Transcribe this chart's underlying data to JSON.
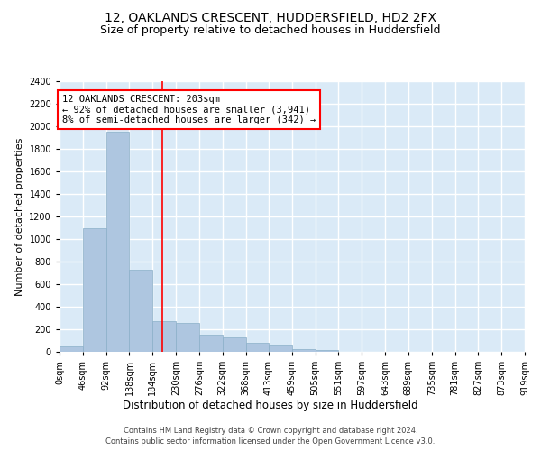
{
  "title1": "12, OAKLANDS CRESCENT, HUDDERSFIELD, HD2 2FX",
  "title2": "Size of property relative to detached houses in Huddersfield",
  "xlabel": "Distribution of detached houses by size in Huddersfield",
  "ylabel": "Number of detached properties",
  "footer1": "Contains HM Land Registry data © Crown copyright and database right 2024.",
  "footer2": "Contains public sector information licensed under the Open Government Licence v3.0.",
  "bar_color": "#aec6e0",
  "bar_edge_color": "#8aafc8",
  "background_color": "#daeaf7",
  "grid_color": "#ffffff",
  "property_line_x": 203,
  "property_line_color": "red",
  "annotation_text": "12 OAKLANDS CRESCENT: 203sqm\n← 92% of detached houses are smaller (3,941)\n8% of semi-detached houses are larger (342) →",
  "annotation_box_color": "white",
  "annotation_edge_color": "red",
  "bin_edges": [
    0,
    46,
    92,
    138,
    184,
    230,
    276,
    322,
    368,
    413,
    459,
    505,
    551,
    597,
    643,
    689,
    735,
    781,
    827,
    873,
    919
  ],
  "bar_heights": [
    50,
    1100,
    1950,
    730,
    270,
    260,
    150,
    130,
    80,
    60,
    25,
    15,
    0,
    0,
    0,
    0,
    0,
    0,
    0,
    0
  ],
  "ylim": [
    0,
    2400
  ],
  "yticks": [
    0,
    200,
    400,
    600,
    800,
    1000,
    1200,
    1400,
    1600,
    1800,
    2000,
    2200,
    2400
  ],
  "title1_fontsize": 10,
  "title2_fontsize": 9,
  "xlabel_fontsize": 8.5,
  "ylabel_fontsize": 8,
  "tick_fontsize": 7,
  "annotation_fontsize": 7.5,
  "footer_fontsize": 6
}
